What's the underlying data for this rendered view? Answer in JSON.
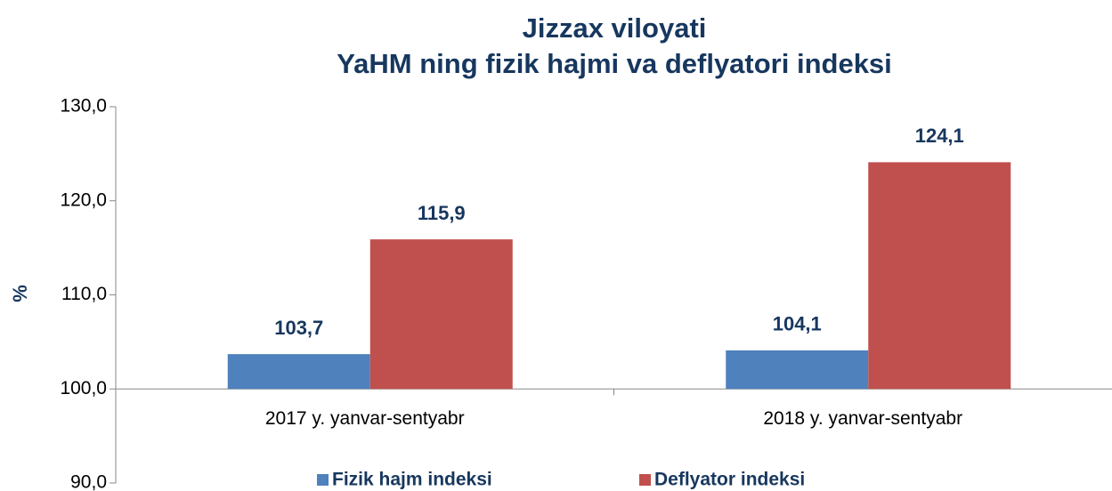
{
  "chart_data": {
    "type": "bar",
    "title": [
      "Jizzax viloyati",
      "YaHM ning fizik hajmi va deflyatori indeksi"
    ],
    "ylabel": "%",
    "categories": [
      "2017 y. yanvar-sentyabr",
      "2018 y. yanvar-sentyabr"
    ],
    "series": [
      {
        "name": "Fizik hajm indeksi",
        "color": "#4f81bd",
        "values": [
          103.7,
          104.1
        ],
        "value_labels": [
          "103,7",
          "104,1"
        ]
      },
      {
        "name": "Deflyator indeksi",
        "color": "#c0504d",
        "values": [
          115.9,
          124.1
        ],
        "value_labels": [
          "115,9",
          "124,1"
        ]
      }
    ],
    "ylim": [
      90,
      130
    ],
    "yticks": [
      {
        "value": 90,
        "label": "90,0"
      },
      {
        "value": 100,
        "label": "100,0"
      },
      {
        "value": 110,
        "label": "110,0"
      },
      {
        "value": 120,
        "label": "120,0"
      },
      {
        "value": 130,
        "label": "130,0"
      }
    ],
    "x_axis_at": 100,
    "legend": "bottom"
  }
}
